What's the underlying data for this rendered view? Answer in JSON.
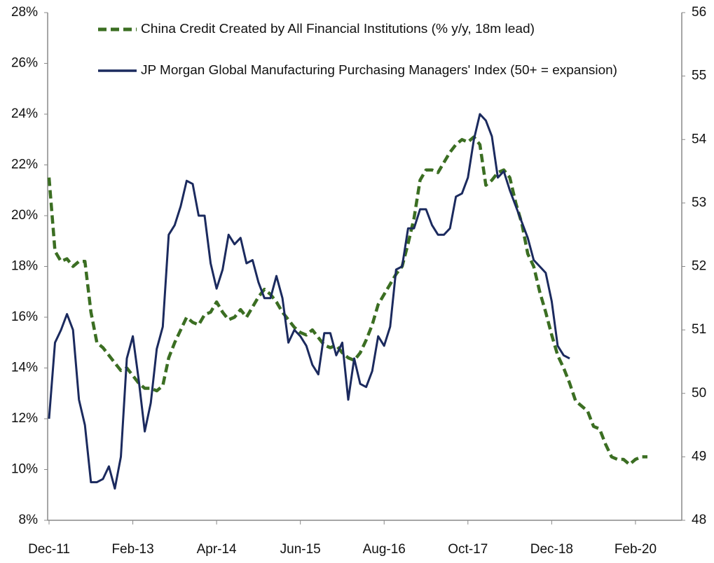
{
  "chart_data": {
    "type": "line",
    "categories": [
      "Dec-11",
      null,
      null,
      null,
      null,
      null,
      null,
      null,
      null,
      null,
      null,
      null,
      null,
      null,
      "Feb-13",
      null,
      null,
      null,
      null,
      null,
      null,
      null,
      null,
      null,
      null,
      null,
      null,
      null,
      "Apr-14",
      null,
      null,
      null,
      null,
      null,
      null,
      null,
      null,
      null,
      null,
      null,
      null,
      null,
      "Jun-15",
      null,
      null,
      null,
      null,
      null,
      null,
      null,
      null,
      null,
      null,
      null,
      null,
      null,
      "Aug-16",
      null,
      null,
      null,
      null,
      null,
      null,
      null,
      null,
      null,
      null,
      null,
      null,
      null,
      "Oct-17",
      null,
      null,
      null,
      null,
      null,
      null,
      null,
      null,
      null,
      null,
      null,
      null,
      null,
      "Dec-18",
      null,
      null,
      null,
      null,
      null,
      null,
      null,
      null,
      null,
      null,
      null,
      null,
      null,
      "Feb-20",
      null,
      null
    ],
    "series": [
      {
        "name": "China Credit Created by All Financial Institutions (% y/y, 18m lead)",
        "color": "#3b6e22",
        "dashed": true,
        "values": [
          21.5,
          18.6,
          18.2,
          18.3,
          18.0,
          18.2,
          18.2,
          16.2,
          15.0,
          14.8,
          14.5,
          14.2,
          13.9,
          14.0,
          13.7,
          13.4,
          13.2,
          13.2,
          13.1,
          13.3,
          14.4,
          15.0,
          15.5,
          16.0,
          15.8,
          15.7,
          16.1,
          16.2,
          16.6,
          16.2,
          15.9,
          16.0,
          16.3,
          16.0,
          16.4,
          16.8,
          17.1,
          16.9,
          16.6,
          16.2,
          15.9,
          15.6,
          15.4,
          15.3,
          15.5,
          15.2,
          14.9,
          14.8,
          14.9,
          14.6,
          14.4,
          14.3,
          14.6,
          15.1,
          15.7,
          16.5,
          16.9,
          17.3,
          17.7,
          18.0,
          18.9,
          19.9,
          21.4,
          21.8,
          21.8,
          21.7,
          22.1,
          22.5,
          22.8,
          23.0,
          22.9,
          23.1,
          22.8,
          21.2,
          21.4,
          21.7,
          21.8,
          21.5,
          20.5,
          19.7,
          18.5,
          18.0,
          17.0,
          16.2,
          15.3,
          14.5,
          14.0,
          13.4,
          12.7,
          12.5,
          12.3,
          11.7,
          11.6,
          11.0,
          10.5,
          10.4,
          10.4,
          10.2,
          10.4,
          10.5,
          10.5
        ]
      },
      {
        "name": "JP Morgan Global Manufacturing Purchasing Managers' Index (50+ = expansion)",
        "color": "#1b2a5e",
        "axis": "y2",
        "values": [
          49.6,
          50.8,
          51.0,
          51.25,
          51.0,
          49.9,
          49.5,
          48.6,
          48.6,
          48.65,
          48.85,
          48.5,
          49.0,
          50.55,
          50.9,
          50.2,
          49.4,
          49.85,
          50.7,
          51.05,
          52.5,
          52.65,
          52.95,
          53.35,
          53.3,
          52.8,
          52.8,
          52.05,
          51.65,
          51.95,
          52.5,
          52.35,
          52.45,
          52.05,
          52.1,
          51.75,
          51.5,
          51.5,
          51.85,
          51.5,
          50.8,
          51.0,
          50.9,
          50.75,
          50.45,
          50.3,
          50.95,
          50.95,
          50.6,
          50.8,
          49.9,
          50.55,
          50.15,
          50.1,
          50.35,
          50.9,
          50.75,
          51.05,
          51.95,
          52.0,
          52.6,
          52.6,
          52.9,
          52.9,
          52.65,
          52.5,
          52.5,
          52.6,
          53.1,
          53.15,
          53.4,
          54.0,
          54.4,
          54.3,
          54.05,
          53.4,
          53.5,
          53.2,
          52.95,
          52.7,
          52.45,
          52.1,
          52.0,
          51.9,
          51.45,
          50.75,
          50.6,
          50.55,
          null,
          null,
          null,
          null,
          null,
          null,
          null,
          null,
          null,
          null,
          null,
          null,
          null
        ]
      }
    ],
    "ylim": [
      8,
      28
    ],
    "yticks": [
      {
        "value": 8,
        "label": "8%"
      },
      {
        "value": 10,
        "label": "10%"
      },
      {
        "value": 12,
        "label": "12%"
      },
      {
        "value": 14,
        "label": "14%"
      },
      {
        "value": 16,
        "label": "16%"
      },
      {
        "value": 18,
        "label": "18%"
      },
      {
        "value": 20,
        "label": "20%"
      },
      {
        "value": 22,
        "label": "22%"
      },
      {
        "value": 24,
        "label": "24%"
      },
      {
        "value": 26,
        "label": "26%"
      },
      {
        "value": 28,
        "label": "28%"
      }
    ],
    "y2lim": [
      48,
      56
    ],
    "y2ticks": [
      48,
      49,
      50,
      51,
      52,
      53,
      54,
      55,
      56
    ]
  }
}
